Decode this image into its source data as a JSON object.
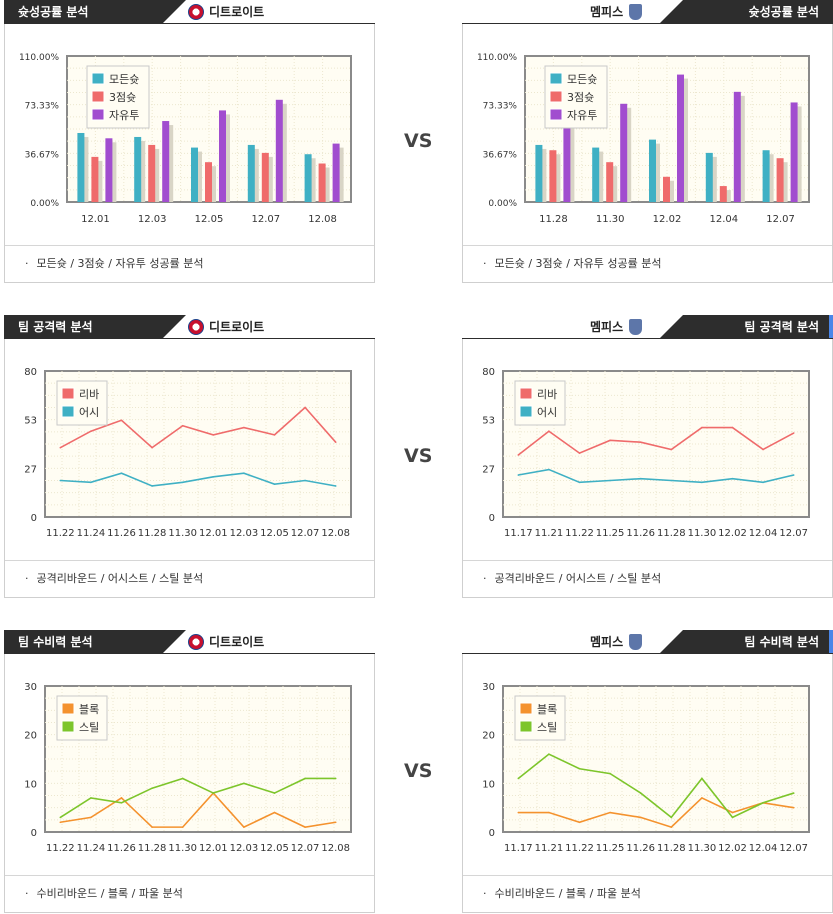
{
  "vs_label": "VS",
  "teams": {
    "home": "디트로이트",
    "away": "멤피스"
  },
  "colors": {
    "all_shot": "#3fb0c4",
    "three": "#ef6b6b",
    "free": "#a14dcf",
    "rebound": "#ef6b6b",
    "assist": "#3fb0c4",
    "block": "#f4922e",
    "steal": "#7dc52b"
  },
  "sections": [
    {
      "title": "슛성공률 분석",
      "footer": "모든슛 / 3점슛 / 자유투 성공률 분석",
      "legend": [
        "모든슛",
        "3점슛",
        "자유투"
      ],
      "left_team": "디트로이트",
      "right_team": "멤피스"
    },
    {
      "title": "팀 공격력 분석",
      "footer": "공격리바운드 / 어시스트 / 스틸 분석",
      "legend": [
        "리바",
        "어시"
      ],
      "left_team": "디트로이트",
      "right_team": "멤피스"
    },
    {
      "title": "팀 수비력 분석",
      "footer": "수비리바운드 / 블록 / 파울 분석",
      "legend": [
        "블록",
        "스틸"
      ],
      "left_team": "디트로이트",
      "right_team": "멤피스"
    }
  ],
  "chart_data": [
    {
      "id": "shoot-left",
      "type": "bar",
      "categories": [
        "12.01",
        "12.03",
        "12.05",
        "12.07",
        "12.08"
      ],
      "ylim": [
        0,
        110
      ],
      "yticks": [
        "0.00%",
        "36.67%",
        "73.33%",
        "110.00%"
      ],
      "series": [
        {
          "name": "모든슛",
          "color": "#3fb0c4",
          "values": [
            52,
            49,
            41,
            43,
            36
          ]
        },
        {
          "name": "3점슛",
          "color": "#ef6b6b",
          "values": [
            34,
            43,
            30,
            37,
            29
          ]
        },
        {
          "name": "자유투",
          "color": "#a14dcf",
          "values": [
            48,
            61,
            69,
            77,
            44
          ]
        }
      ]
    },
    {
      "id": "shoot-right",
      "type": "bar",
      "categories": [
        "11.28",
        "11.30",
        "12.02",
        "12.04",
        "12.07"
      ],
      "ylim": [
        0,
        110
      ],
      "yticks": [
        "0.00%",
        "36.67%",
        "73.33%",
        "110.00%"
      ],
      "series": [
        {
          "name": "모든슛",
          "color": "#3fb0c4",
          "values": [
            43,
            41,
            47,
            37,
            39
          ]
        },
        {
          "name": "3점슛",
          "color": "#ef6b6b",
          "values": [
            39,
            30,
            19,
            12,
            33
          ]
        },
        {
          "name": "자유투",
          "color": "#a14dcf",
          "values": [
            60,
            74,
            96,
            83,
            75
          ]
        }
      ]
    },
    {
      "id": "attack-left",
      "type": "line",
      "categories": [
        "11.22",
        "11.24",
        "11.26",
        "11.28",
        "11.30",
        "12.01",
        "12.03",
        "12.05",
        "12.07",
        "12.08"
      ],
      "ylim": [
        0,
        80
      ],
      "yticks": [
        "0",
        "27",
        "53",
        "80"
      ],
      "series": [
        {
          "name": "리바",
          "color": "#ef6b6b",
          "values": [
            38,
            47,
            53,
            38,
            50,
            45,
            49,
            45,
            60,
            41
          ]
        },
        {
          "name": "어시",
          "color": "#3fb0c4",
          "values": [
            20,
            19,
            24,
            17,
            19,
            22,
            24,
            18,
            20,
            17
          ]
        }
      ]
    },
    {
      "id": "attack-right",
      "type": "line",
      "categories": [
        "11.17",
        "11.21",
        "11.22",
        "11.25",
        "11.26",
        "11.28",
        "11.30",
        "12.02",
        "12.04",
        "12.07"
      ],
      "ylim": [
        0,
        80
      ],
      "yticks": [
        "0",
        "27",
        "53",
        "80"
      ],
      "series": [
        {
          "name": "리바",
          "color": "#ef6b6b",
          "values": [
            34,
            47,
            35,
            42,
            41,
            37,
            49,
            49,
            37,
            46
          ]
        },
        {
          "name": "어시",
          "color": "#3fb0c4",
          "values": [
            23,
            26,
            19,
            20,
            21,
            20,
            19,
            21,
            19,
            23
          ]
        }
      ]
    },
    {
      "id": "defense-left",
      "type": "line",
      "categories": [
        "11.22",
        "11.24",
        "11.26",
        "11.28",
        "11.30",
        "12.01",
        "12.03",
        "12.05",
        "12.07",
        "12.08"
      ],
      "ylim": [
        0,
        30
      ],
      "yticks": [
        "0",
        "10",
        "20",
        "30"
      ],
      "series": [
        {
          "name": "블록",
          "color": "#f4922e",
          "values": [
            2,
            3,
            7,
            1,
            1,
            8,
            1,
            4,
            1,
            2
          ]
        },
        {
          "name": "스틸",
          "color": "#7dc52b",
          "values": [
            3,
            7,
            6,
            9,
            11,
            8,
            10,
            8,
            11,
            11
          ]
        }
      ]
    },
    {
      "id": "defense-right",
      "type": "line",
      "categories": [
        "11.17",
        "11.21",
        "11.22",
        "11.25",
        "11.26",
        "11.28",
        "11.30",
        "12.02",
        "12.04",
        "12.07"
      ],
      "ylim": [
        0,
        30
      ],
      "yticks": [
        "0",
        "10",
        "20",
        "30"
      ],
      "series": [
        {
          "name": "블록",
          "color": "#f4922e",
          "values": [
            4,
            4,
            2,
            4,
            3,
            1,
            7,
            4,
            6,
            5
          ]
        },
        {
          "name": "스틸",
          "color": "#7dc52b",
          "values": [
            11,
            16,
            13,
            12,
            8,
            3,
            11,
            3,
            6,
            8
          ]
        }
      ]
    }
  ]
}
